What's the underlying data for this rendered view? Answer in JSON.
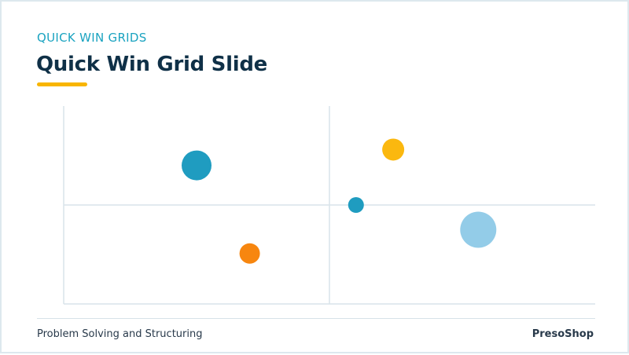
{
  "slide": {
    "eyebrow": "QUICK WIN GRIDS",
    "title": "Quick Win Grid Slide",
    "footer_left": "Problem Solving and Structuring",
    "footer_right": "PresoShop"
  },
  "colors": {
    "teal": "#1f9cc0",
    "yellow": "#fbb80f",
    "orange": "#f7860f",
    "light_blue": "#93cce8",
    "axis": "#d9e4ea",
    "title": "#0f3047",
    "eyebrow": "#1aa3c0",
    "underline": "#f8b500"
  },
  "chart_data": {
    "type": "scatter",
    "xlim": [
      0,
      2
    ],
    "ylim": [
      0,
      2
    ],
    "grid": false,
    "quadrant_dividers": {
      "x": 1,
      "y": 1
    },
    "points": [
      {
        "x": 0.5,
        "y": 1.4,
        "size": 19,
        "color": "#1f9cc0"
      },
      {
        "x": 1.24,
        "y": 1.56,
        "size": 14,
        "color": "#fbb80f"
      },
      {
        "x": 1.1,
        "y": 1.0,
        "size": 10,
        "color": "#1f9cc0"
      },
      {
        "x": 1.56,
        "y": 0.75,
        "size": 23,
        "color": "#93cce8"
      },
      {
        "x": 0.7,
        "y": 0.51,
        "size": 13,
        "color": "#f7860f"
      }
    ]
  }
}
